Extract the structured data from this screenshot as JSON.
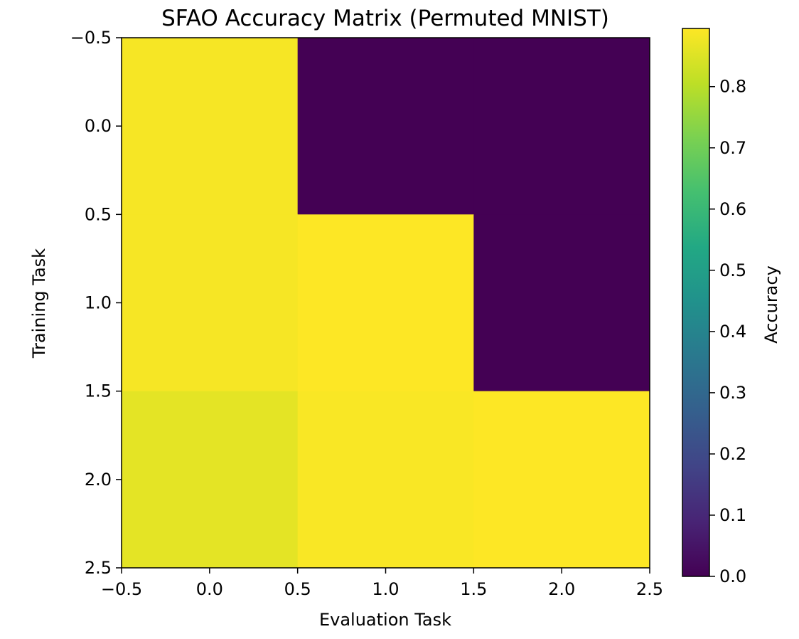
{
  "chart_data": {
    "type": "heatmap",
    "title": "SFAO Accuracy Matrix (Permuted MNIST)",
    "xlabel": "Evaluation Task",
    "ylabel": "Training Task",
    "xlim": [
      -0.5,
      2.5
    ],
    "ylim": [
      2.5,
      -0.5
    ],
    "xticks": [
      -0.5,
      0.0,
      0.5,
      1.0,
      1.5,
      2.0,
      2.5
    ],
    "yticks": [
      -0.5,
      0.0,
      0.5,
      1.0,
      1.5,
      2.0,
      2.5
    ],
    "xtick_labels": [
      "−0.5",
      "0.0",
      "0.5",
      "1.0",
      "1.5",
      "2.0",
      "2.5"
    ],
    "ytick_labels": [
      "−0.5",
      "0.0",
      "0.5",
      "1.0",
      "1.5",
      "2.0",
      "2.5"
    ],
    "colormap": "viridis",
    "values": [
      [
        0.885,
        0.0,
        0.0
      ],
      [
        0.885,
        0.895,
        0.0
      ],
      [
        0.86,
        0.89,
        0.895
      ]
    ],
    "colorbar": {
      "label": "Accuracy",
      "range": [
        0.0,
        0.895
      ],
      "ticks": [
        0.0,
        0.1,
        0.2,
        0.3,
        0.4,
        0.5,
        0.6,
        0.7,
        0.8
      ],
      "tick_labels": [
        "0.0",
        "0.1",
        "0.2",
        "0.3",
        "0.4",
        "0.5",
        "0.6",
        "0.7",
        "0.8"
      ]
    },
    "grid": false
  }
}
